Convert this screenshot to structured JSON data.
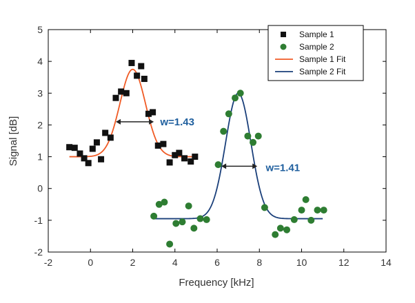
{
  "chart_data": {
    "type": "scatter",
    "xlabel": "Frequency [kHz]",
    "ylabel": "Signal [dB]",
    "xlim": [
      -2,
      14
    ],
    "ylim": [
      -2,
      5
    ],
    "xticks": [
      -2,
      0,
      2,
      4,
      6,
      8,
      10,
      12,
      14
    ],
    "yticks": [
      -2,
      -1,
      0,
      1,
      2,
      3,
      4,
      5
    ],
    "grid": false,
    "legend": {
      "position": "top-right"
    },
    "series": [
      {
        "name": "Sample 1",
        "kind": "scatter",
        "marker": "square",
        "color": "#111111",
        "points": [
          [
            -1.0,
            1.3
          ],
          [
            -0.75,
            1.28
          ],
          [
            -0.5,
            1.1
          ],
          [
            -0.3,
            0.95
          ],
          [
            -0.1,
            0.8
          ],
          [
            0.1,
            1.25
          ],
          [
            0.3,
            1.45
          ],
          [
            0.5,
            0.92
          ],
          [
            0.7,
            1.75
          ],
          [
            0.95,
            1.6
          ],
          [
            1.2,
            2.85
          ],
          [
            1.45,
            3.05
          ],
          [
            1.7,
            3.0
          ],
          [
            1.95,
            3.95
          ],
          [
            2.2,
            3.55
          ],
          [
            2.4,
            3.85
          ],
          [
            2.55,
            3.45
          ],
          [
            2.75,
            2.35
          ],
          [
            2.95,
            2.4
          ],
          [
            3.2,
            1.35
          ],
          [
            3.45,
            1.4
          ],
          [
            3.75,
            0.82
          ],
          [
            4.0,
            1.05
          ],
          [
            4.2,
            1.12
          ],
          [
            4.45,
            0.95
          ],
          [
            4.75,
            0.85
          ],
          [
            4.95,
            1.0
          ]
        ]
      },
      {
        "name": "Sample 2",
        "kind": "scatter",
        "marker": "circle",
        "color": "#2e7d32",
        "points": [
          [
            3.0,
            -0.87
          ],
          [
            3.25,
            -0.5
          ],
          [
            3.5,
            -0.43
          ],
          [
            3.75,
            -1.75
          ],
          [
            4.05,
            -1.1
          ],
          [
            4.35,
            -1.05
          ],
          [
            4.65,
            -0.55
          ],
          [
            4.9,
            -1.25
          ],
          [
            5.2,
            -0.95
          ],
          [
            5.5,
            -0.98
          ],
          [
            6.05,
            0.75
          ],
          [
            6.3,
            1.8
          ],
          [
            6.55,
            2.35
          ],
          [
            6.85,
            2.85
          ],
          [
            7.1,
            3.0
          ],
          [
            7.45,
            1.65
          ],
          [
            7.7,
            1.45
          ],
          [
            7.95,
            1.65
          ],
          [
            8.25,
            -0.6
          ],
          [
            8.75,
            -1.45
          ],
          [
            9.0,
            -1.25
          ],
          [
            9.3,
            -1.3
          ],
          [
            9.65,
            -0.98
          ],
          [
            10.0,
            -0.68
          ],
          [
            10.2,
            -0.35
          ],
          [
            10.45,
            -1.0
          ],
          [
            10.75,
            -0.68
          ],
          [
            11.05,
            -0.68
          ]
        ]
      },
      {
        "name": "Sample 1 Fit",
        "kind": "line",
        "color": "#f05a24",
        "model": {
          "baseline": 1.0,
          "amplitude": 2.75,
          "center": 2.0,
          "xrange": [
            -1.0,
            5.0
          ]
        }
      },
      {
        "name": "Sample 2 Fit",
        "kind": "line",
        "color": "#1a3f7a",
        "model": {
          "baseline": -0.95,
          "amplitude": 3.95,
          "center": 7.0,
          "xrange": [
            3.0,
            11.0
          ]
        }
      }
    ],
    "annotations": [
      {
        "text": "w=1.43",
        "x_from": 1.2,
        "x_to": 3.0,
        "y": 2.1,
        "text_x": 3.3,
        "text_y": 2.1
      },
      {
        "text": "w=1.41",
        "x_from": 6.2,
        "x_to": 7.9,
        "y": 0.7,
        "text_x": 8.3,
        "text_y": 0.65
      }
    ]
  }
}
